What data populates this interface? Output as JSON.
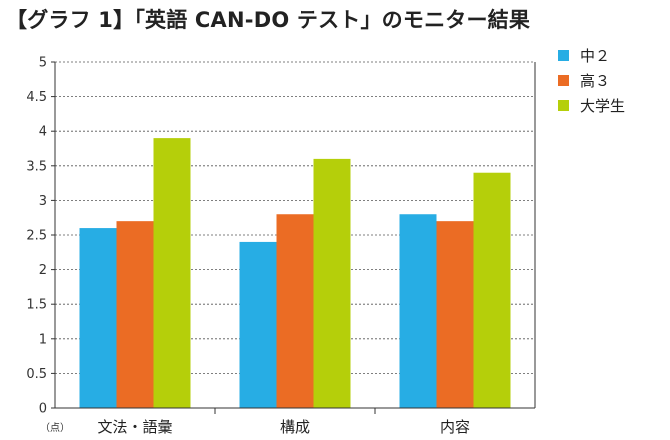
{
  "title": "【グラフ 1】「英語 CAN-DO テスト」のモニター結果",
  "chart_data": {
    "type": "bar",
    "categories": [
      "文法・語彙",
      "構成",
      "内容"
    ],
    "series": [
      {
        "name": "中２",
        "color": "#27ade4",
        "values": [
          2.6,
          2.4,
          2.8
        ]
      },
      {
        "name": "高３",
        "color": "#eb6c24",
        "values": [
          2.7,
          2.8,
          2.7
        ]
      },
      {
        "name": "大学生",
        "color": "#b5cf0a",
        "values": [
          3.9,
          3.6,
          3.4
        ]
      }
    ],
    "ylim": [
      0,
      5
    ],
    "yticks": [
      "0",
      "0.5",
      "1",
      "1.5",
      "2",
      "2.5",
      "3",
      "3.5",
      "4",
      "4.5",
      "5"
    ],
    "ylabel": "（点）",
    "grid": "horizontal dotted",
    "legend": "right"
  }
}
